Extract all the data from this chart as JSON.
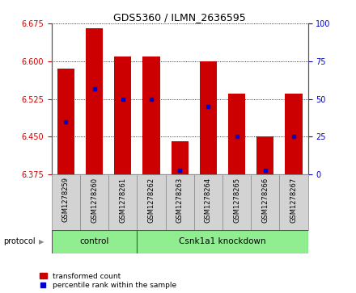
{
  "title": "GDS5360 / ILMN_2636595",
  "samples": [
    "GSM1278259",
    "GSM1278260",
    "GSM1278261",
    "GSM1278262",
    "GSM1278263",
    "GSM1278264",
    "GSM1278265",
    "GSM1278266",
    "GSM1278267"
  ],
  "bar_tops": [
    6.585,
    6.665,
    6.61,
    6.61,
    6.44,
    6.6,
    6.535,
    6.45,
    6.535
  ],
  "bar_bottom": 6.375,
  "percentile_values": [
    6.48,
    6.545,
    6.525,
    6.525,
    6.383,
    6.51,
    6.45,
    6.383,
    6.45
  ],
  "ylim_left": [
    6.375,
    6.675
  ],
  "ylim_right": [
    0,
    100
  ],
  "yticks_left": [
    6.375,
    6.45,
    6.525,
    6.6,
    6.675
  ],
  "yticks_right": [
    0,
    25,
    50,
    75,
    100
  ],
  "bar_color": "#cc0000",
  "percentile_color": "#0000cc",
  "bar_width": 0.6,
  "control_count": 3,
  "knockdown_count": 6,
  "protocol_label": "protocol",
  "control_label": "control",
  "knockdown_label": "Csnk1a1 knockdown",
  "group_color": "#90ee90",
  "xlabel_color": "#cc0000",
  "ylabel_right_color": "#0000cc",
  "background_color": "#ffffff",
  "tick_label_box_color": "#d3d3d3",
  "legend_label_red": "transformed count",
  "legend_label_blue": "percentile rank within the sample"
}
